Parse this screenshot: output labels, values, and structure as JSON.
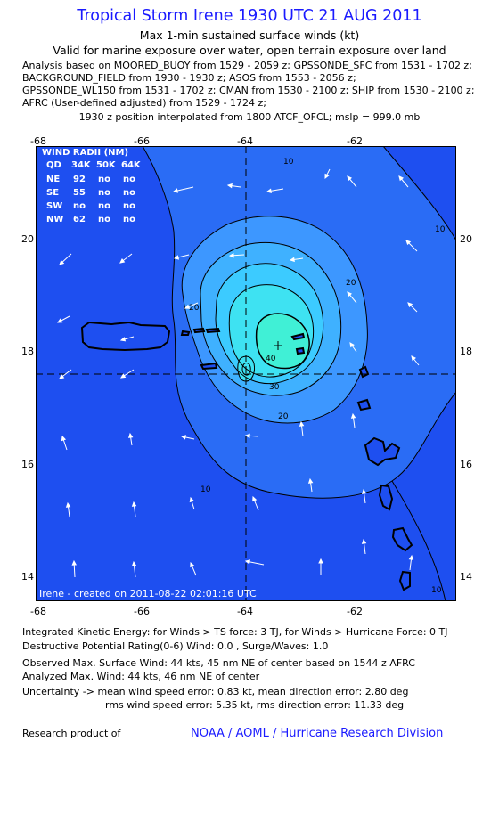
{
  "title": "Tropical Storm Irene 1930 UTC 21 AUG 2011",
  "subtitle1": "Max 1-min sustained surface winds (kt)",
  "subtitle2": "Valid for marine exposure over water, open terrain exposure over land",
  "analysis_lines": [
    "Analysis based on MOORED_BUOY from 1529 - 2059 z; GPSSONDE_SFC from 1531 - 1702 z;",
    "BACKGROUND_FIELD from 1930 - 1930 z; ASOS from 1553 - 2056 z;",
    "GPSSONDE_WL150 from 1531 - 1702 z; CMAN from 1530 - 2100 z; SHIP from 1530 - 2100 z;",
    "AFRC (User-defined adjusted) from 1529 - 1724 z;"
  ],
  "position_line": "1930 z position interpolated from 1800 ATCF_OFCL; mslp = 999.0 mb",
  "map": {
    "lon_ticks": [
      "-68",
      "-66",
      "-64",
      "-62"
    ],
    "lat_ticks": [
      "20",
      "18",
      "16",
      "14"
    ],
    "contour_labels": [
      "10",
      "10",
      "10",
      "10",
      "20",
      "20",
      "20",
      "30",
      "40"
    ],
    "wind_radii": {
      "header": "WIND RADII (NM)",
      "columns": [
        "QD",
        "34K",
        "50K",
        "64K"
      ],
      "rows": [
        [
          "NE",
          "92",
          "no",
          "no"
        ],
        [
          "SE",
          "55",
          "no",
          "no"
        ],
        [
          "SW",
          "no",
          "no",
          "no"
        ],
        [
          "NW",
          "62",
          "no",
          "no"
        ]
      ]
    },
    "created": "Irene - created on 2011-08-22 02:01:16 UTC",
    "colors": {
      "outer": "#1e4ff0",
      "level10": "#2a6cf5",
      "level20": "#3d97ff",
      "level25": "#3fb1ff",
      "level30": "#3ccbff",
      "level35": "#3ee2f2",
      "level40": "#40f0d6"
    }
  },
  "stats": {
    "ike": "Integrated Kinetic Energy:  for Winds > TS force: 3 TJ,  for Winds > Hurricane Force: 0 TJ",
    "dpr": "Destructive Potential Rating(0-6)  Wind: 0.0 , Surge/Waves: 1.0",
    "observed": "Observed Max. Surface Wind: 44 kts, 45 nm NE of center based on 1544 z AFRC",
    "analyzed": "Analyzed Max. Wind: 44 kts, 46 nm NE of center",
    "uncertainty1": "Uncertainty -> mean wind speed error: 0.83 kt,   mean direction error: 2.80 deg",
    "uncertainty2": "rms wind speed error: 5.35 kt,   rms direction error: 11.33 deg"
  },
  "footer": {
    "left": "Research product of",
    "link": "NOAA / AOML / Hurricane Research Division"
  }
}
